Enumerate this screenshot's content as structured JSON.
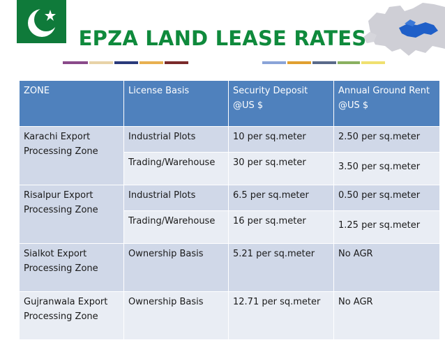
{
  "title": "EPZA LAND LEASE RATES",
  "colors": {
    "title": "#0f8a3c",
    "header_bg": "#4f81bd",
    "row_dark": "#d0d8e8",
    "row_light": "#e9edf4",
    "flag_green": "#0f7a3a"
  },
  "table": {
    "headers": [
      "ZONE",
      "License Basis",
      "Security Deposit @US $",
      "Annual Ground Rent @US $"
    ],
    "header_lines": [
      [
        "ZONE"
      ],
      [
        "License Basis"
      ],
      [
        "Security Deposit",
        "@US $"
      ],
      [
        "Annual Ground Rent",
        "@US $"
      ]
    ],
    "zones": [
      {
        "name": [
          "Karachi Export",
          "Processing Zone"
        ],
        "rows": [
          {
            "basis": "Industrial Plots",
            "deposit": "10 per sq.meter",
            "rent": "2.50 per sq.meter"
          },
          {
            "basis": "Trading/Warehouse",
            "deposit": "30 per sq.meter",
            "rent": "3.50 per sq.meter"
          }
        ]
      },
      {
        "name": [
          "Risalpur Export",
          "Processing Zone"
        ],
        "rows": [
          {
            "basis": "Industrial Plots",
            "deposit": "6.5 per sq.meter",
            "rent": "0.50 per sq.meter"
          },
          {
            "basis": "Trading/Warehouse",
            "deposit": "16 per sq.meter",
            "rent": "1.25 per sq.meter"
          }
        ]
      },
      {
        "name": [
          "Sialkot Export",
          "Processing Zone"
        ],
        "rows": [
          {
            "basis": "Ownership Basis",
            "deposit": "5.21 per sq.meter",
            "rent": "No AGR"
          }
        ]
      },
      {
        "name": [
          "Gujranwala Export",
          "Processing Zone"
        ],
        "rows": [
          {
            "basis": "Ownership Basis",
            "deposit": "12.71 per sq.meter",
            "rent": "No AGR"
          }
        ]
      }
    ]
  }
}
